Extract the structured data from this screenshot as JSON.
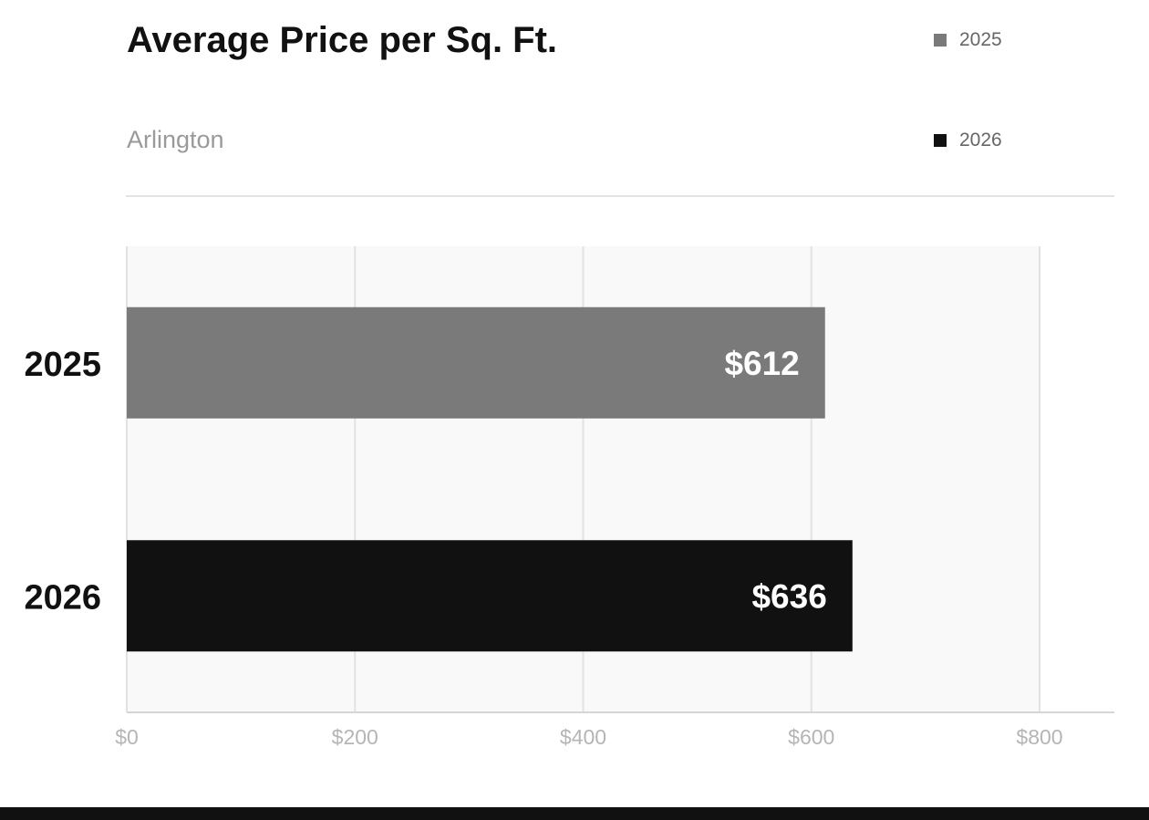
{
  "chart_data": {
    "type": "bar",
    "orientation": "horizontal",
    "title": "Average Price per Sq. Ft.",
    "subtitle": "Arlington",
    "categories": [
      "2025",
      "2026"
    ],
    "values": [
      612,
      636
    ],
    "data_labels": [
      "$612",
      "$636"
    ],
    "bar_colors": [
      "#7a7a7a",
      "#111111"
    ],
    "legend": [
      {
        "label": "2025",
        "color": "#7a7a7a"
      },
      {
        "label": "2026",
        "color": "#111111"
      }
    ],
    "legend_position": "top-right",
    "xlim": [
      0,
      800
    ],
    "x_ticks": [
      0,
      200,
      400,
      600,
      800
    ],
    "x_tick_labels": [
      "$0",
      "$200",
      "$400",
      "$600",
      "$800"
    ],
    "grid": true
  }
}
